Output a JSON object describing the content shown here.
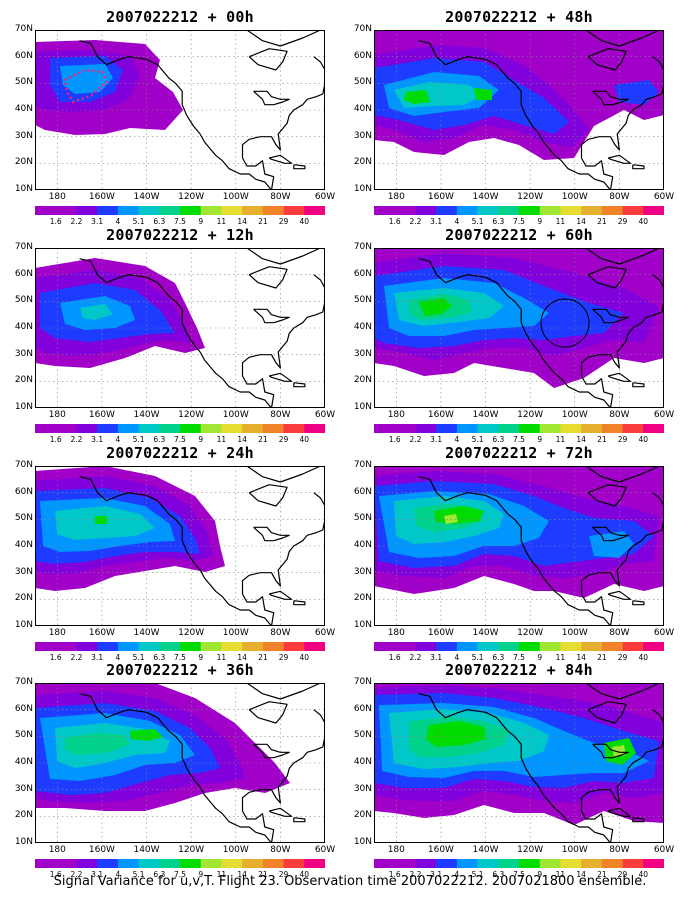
{
  "panels": [
    {
      "title": "2007022212 + 00h"
    },
    {
      "title": "2007022212 + 48h"
    },
    {
      "title": "2007022212 + 12h"
    },
    {
      "title": "2007022212 + 60h"
    },
    {
      "title": "2007022212 + 24h"
    },
    {
      "title": "2007022212 + 72h"
    },
    {
      "title": "2007022212 + 36h"
    },
    {
      "title": "2007022212 + 84h"
    }
  ],
  "lat_labels": [
    "70N",
    "60N",
    "50N",
    "40N",
    "30N",
    "20N",
    "10N"
  ],
  "lon_labels": [
    "180",
    "160W",
    "140W",
    "120W",
    "100W",
    "80W",
    "60W"
  ],
  "colorbar": {
    "labels": [
      "1.6",
      "2.2",
      "3.1",
      "4",
      "5.1",
      "6.3",
      "7.5",
      "9",
      "11",
      "14",
      "21",
      "29",
      "40"
    ],
    "colors": [
      "#a000c8",
      "#8200dc",
      "#1e3cff",
      "#0096ff",
      "#00c8c8",
      "#00d28c",
      "#00dc00",
      "#a0e632",
      "#e6dc32",
      "#e6af2d",
      "#f08228",
      "#fa3c3c",
      "#f00082"
    ]
  },
  "caption": "Signal Variance for u,v,T. Flight 23. Observation time 2007022212. 2007021800 ensemble."
}
